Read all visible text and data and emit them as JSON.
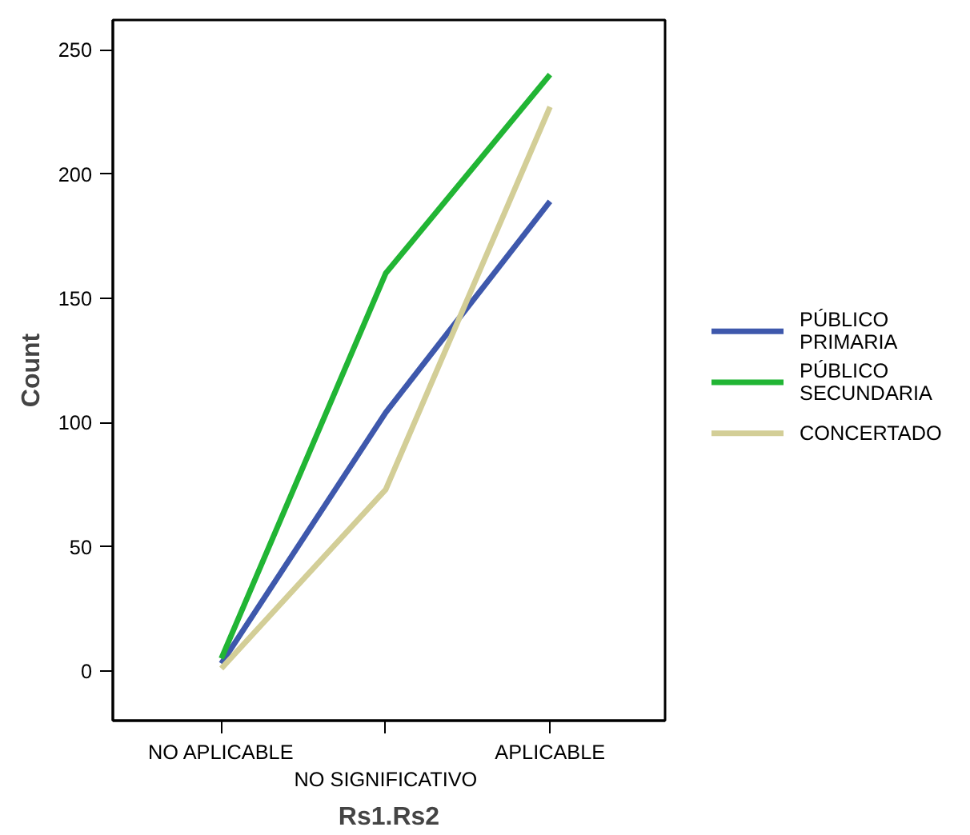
{
  "chart_data": {
    "type": "line",
    "xlabel": "Rs1.Rs2",
    "ylabel": "Count",
    "categories": [
      "NO APLICABLE",
      "NO SIGNIFICATIVO",
      "APLICABLE"
    ],
    "series": [
      {
        "name": "PÚBLICO PRIMARIA",
        "color": "#3e58ac",
        "values": [
          3,
          104,
          189
        ]
      },
      {
        "name": "PÚBLICO SECUNDARIA",
        "color": "#21b534",
        "values": [
          5,
          160,
          240
        ]
      },
      {
        "name": "CONCERTADO",
        "color": "#d3ce97",
        "values": [
          1,
          73,
          227
        ]
      }
    ],
    "ylim": [
      -20,
      262
    ],
    "yticks": [
      0,
      50,
      100,
      150,
      200,
      250
    ],
    "grid": false,
    "legend": "right",
    "marker": "none",
    "line_style": "solid"
  }
}
